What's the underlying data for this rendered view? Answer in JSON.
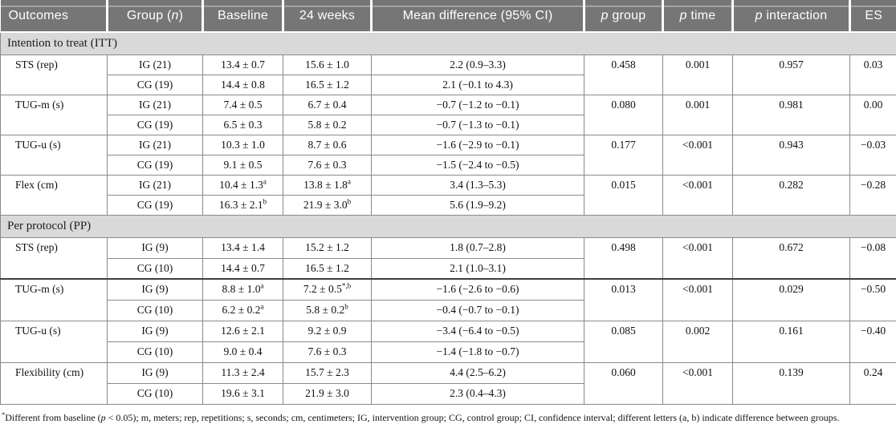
{
  "colors": {
    "header_bg": "#757575",
    "header_text": "#ffffff",
    "section_bg": "#d9d9d9",
    "border": "#8a8a8a",
    "heavy_border": "#3f3f3f"
  },
  "header": {
    "cells": [
      {
        "pre": "Outcomes"
      },
      {
        "pre": "Group (",
        "it": "n",
        "post": ")"
      },
      {
        "pre": "Baseline"
      },
      {
        "pre": "24 weeks"
      },
      {
        "pre": "Mean difference (95% CI)"
      },
      {
        "pre": "",
        "it": "p",
        "post": " group"
      },
      {
        "pre": "",
        "it": "p",
        "post": " time"
      },
      {
        "pre": "",
        "it": "p",
        "post": " interaction"
      },
      {
        "pre": "ES"
      }
    ]
  },
  "sections": [
    {
      "label": "Intention to treat (ITT)",
      "groups": [
        {
          "outcome": "STS (rep)",
          "ig": {
            "group": "IG (21)",
            "baseline": "13.4 ± 0.7",
            "w24": "15.6 ± 1.0",
            "diff": "2.2 (0.9–3.3)"
          },
          "cg": {
            "group": "CG (19)",
            "baseline": "14.4 ± 0.8",
            "w24": "16.5 ± 1.2",
            "diff": "2.1 (−0.1 to 4.3)"
          },
          "p_group": "0.458",
          "p_time": "0.001",
          "p_interaction": "0.957",
          "es": "0.03"
        },
        {
          "outcome": "TUG-m (s)",
          "ig": {
            "group": "IG (21)",
            "baseline": "7.4 ± 0.5",
            "w24": "6.7 ± 0.4",
            "diff": "−0.7 (−1.2 to −0.1)"
          },
          "cg": {
            "group": "CG (19)",
            "baseline": "6.5 ± 0.3",
            "w24": "5.8 ± 0.2",
            "diff": "−0.7 (−1.3 to −0.1)"
          },
          "p_group": "0.080",
          "p_time": "0.001",
          "p_interaction": "0.981",
          "es": "0.00"
        },
        {
          "outcome": "TUG-u (s)",
          "ig": {
            "group": "IG (21)",
            "baseline": "10.3 ± 1.0",
            "w24": "8.7 ± 0.6",
            "diff": "−1.6 (−2.9 to −0.1)"
          },
          "cg": {
            "group": "CG (19)",
            "baseline": "9.1 ± 0.5",
            "w24": "7.6 ± 0.3",
            "diff": "−1.5 (−2.4 to −0.5)"
          },
          "p_group": "0.177",
          "p_time": "<0.001",
          "p_interaction": "0.943",
          "es": "−0.03"
        },
        {
          "outcome": "Flex (cm)",
          "ig": {
            "group": "IG (21)",
            "baseline": "10.4 ± 1.3",
            "baseline_sup": "a",
            "w24": "13.8 ± 1.8",
            "w24_sup": "a",
            "diff": "3.4 (1.3–5.3)"
          },
          "cg": {
            "group": "CG (19)",
            "baseline": "16.3 ± 2.1",
            "baseline_sup": "b",
            "w24": "21.9 ± 3.0",
            "w24_sup": "b",
            "diff": "5.6 (1.9–9.2)"
          },
          "p_group": "0.015",
          "p_time": "<0.001",
          "p_interaction": "0.282",
          "es": "−0.28"
        }
      ]
    },
    {
      "label": "Per protocol (PP)",
      "groups": [
        {
          "outcome": "STS (rep)",
          "ig": {
            "group": "IG (9)",
            "baseline": "13.4 ± 1.4",
            "w24": "15.2 ± 1.2",
            "diff": "1.8 (0.7–2.8)"
          },
          "cg": {
            "group": "CG (10)",
            "baseline": "14.4 ± 0.7",
            "w24": "16.5 ± 1.2",
            "diff": "2.1 (1.0–3.1)"
          },
          "p_group": "0.498",
          "p_time": "<0.001",
          "p_interaction": "0.672",
          "es": "−0.08"
        },
        {
          "outcome": "TUG-m (s)",
          "ig": {
            "group": "IG (9)",
            "baseline": "8.8 ± 1.0",
            "baseline_sup": "a",
            "w24": "7.2 ± 0.5",
            "w24_sup": "*,b",
            "diff": "−1.6 (−2.6 to −0.6)"
          },
          "cg": {
            "group": "CG (10)",
            "baseline": "6.2 ± 0.2",
            "baseline_sup": "a",
            "w24": "5.8 ± 0.2",
            "w24_sup": "b",
            "diff": "−0.4 (−0.7 to −0.1)"
          },
          "p_group": "0.013",
          "p_time": "<0.001",
          "p_interaction": "0.029",
          "es": "−0.50"
        },
        {
          "outcome": "TUG-u (s)",
          "ig": {
            "group": "IG (9)",
            "baseline": "12.6 ± 2.1",
            "w24": "9.2 ± 0.9",
            "diff": "−3.4 (−6.4 to −0.5)"
          },
          "cg": {
            "group": "CG (10)",
            "baseline": "9.0 ± 0.4",
            "w24": "7.6 ± 0.3",
            "diff": "−1.4 (−1.8 to −0.7)"
          },
          "p_group": "0.085",
          "p_time": "0.002",
          "p_interaction": "0.161",
          "es": "−0.40"
        },
        {
          "outcome": "Flexibility (cm)",
          "ig": {
            "group": "IG (9)",
            "baseline": "11.3 ± 2.4",
            "w24": "15.7 ± 2.3",
            "diff": "4.4 (2.5–6.2)"
          },
          "cg": {
            "group": "CG (10)",
            "baseline": "19.6 ± 3.1",
            "w24": "21.9 ± 3.0",
            "diff": "2.3 (0.4–4.3)"
          },
          "p_group": "0.060",
          "p_time": "<0.001",
          "p_interaction": "0.139",
          "es": "0.24"
        }
      ]
    }
  ],
  "footnote": {
    "sup": "*",
    "pre": "Different from baseline (",
    "it": "p",
    "post": " < 0.05); m, meters; rep, repetitions; s, seconds; cm, centimeters; IG, intervention group; CG, control group; CI, confidence interval; different letters (a, b) indicate difference between groups."
  }
}
